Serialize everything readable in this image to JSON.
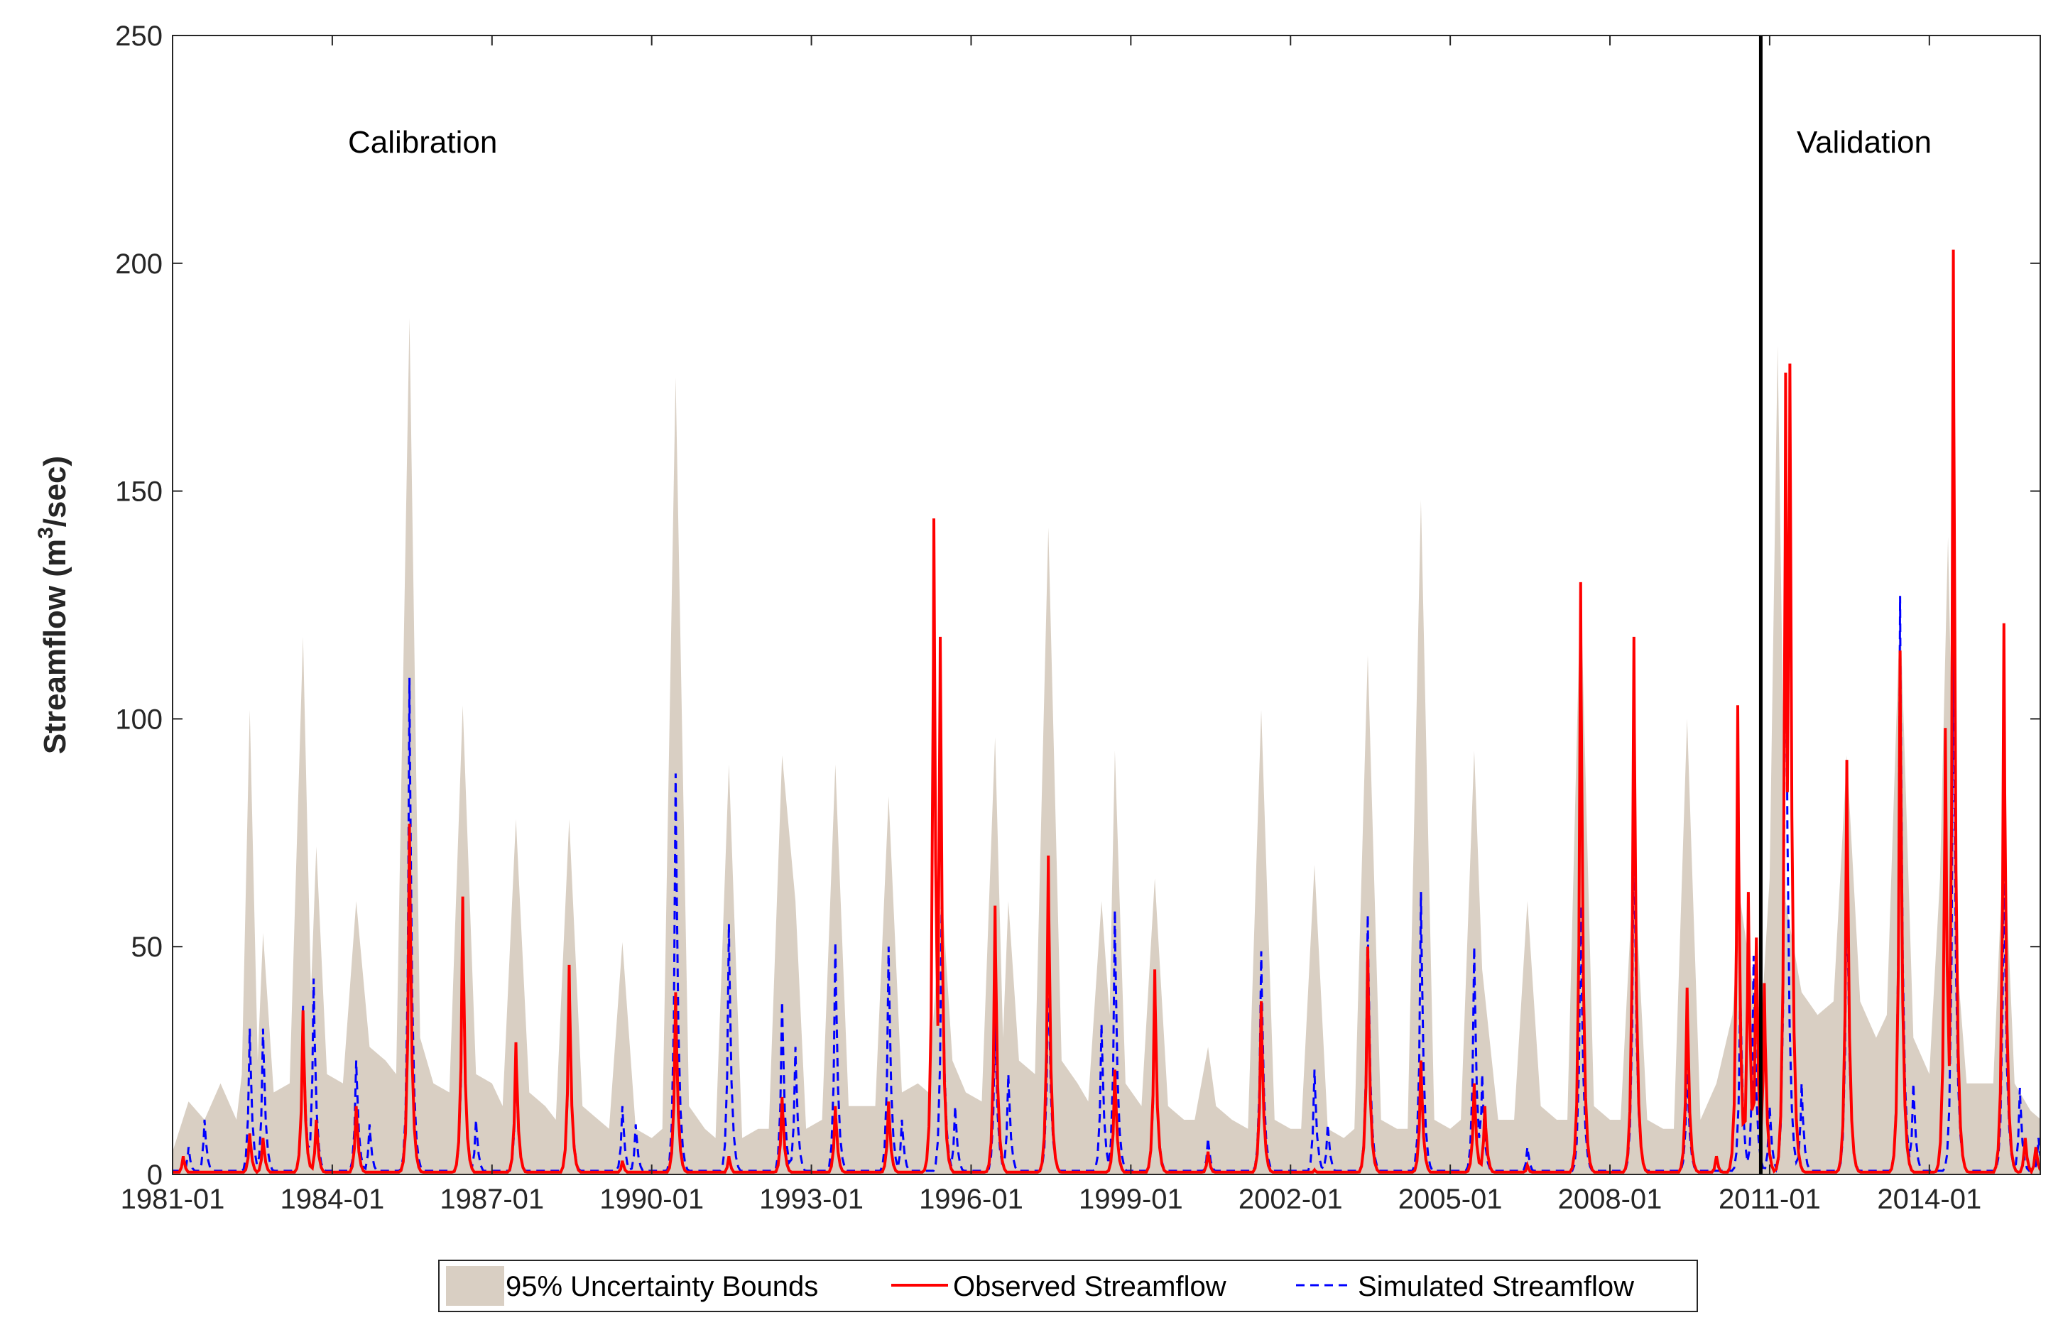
{
  "chart_data": {
    "type": "line",
    "ylabel": {
      "prefix": "Streamflow (m",
      "sup": "3",
      "suffix": "/sec)"
    },
    "ylim": [
      0,
      250
    ],
    "yticks": [
      0,
      50,
      100,
      150,
      200,
      250
    ],
    "xlim": [
      "1981-01",
      "2016-02"
    ],
    "xticks": [
      "1981-01",
      "1984-01",
      "1987-01",
      "1990-01",
      "1993-01",
      "1996-01",
      "1999-01",
      "2002-01",
      "2005-01",
      "2008-01",
      "2011-01",
      "2014-01"
    ],
    "grid": false,
    "legend_position": "bottom-center, outside",
    "annotations": [
      {
        "text": "Calibration",
        "x": "1981-01"
      },
      {
        "text": "Validation",
        "x": "2011-01"
      }
    ],
    "divider_x": "2010-11",
    "colors": {
      "band": "#d9cfc3",
      "observed": "#ff0000",
      "simulated": "#0000ff",
      "divider": "#000000"
    },
    "series": [
      {
        "name": "95% Uncertainty Bounds",
        "kind": "band",
        "note": "Upper values per year: x in fractional years, y in m3/sec",
        "upper": [
          [
            1981.0,
            5
          ],
          [
            1981.3,
            16
          ],
          [
            1981.6,
            12
          ],
          [
            1981.9,
            20
          ],
          [
            1982.2,
            12
          ],
          [
            1982.3,
            22
          ],
          [
            1982.45,
            102
          ],
          [
            1982.6,
            25
          ],
          [
            1982.7,
            53
          ],
          [
            1982.9,
            18
          ],
          [
            1983.2,
            20
          ],
          [
            1983.45,
            118
          ],
          [
            1983.6,
            40
          ],
          [
            1983.7,
            72
          ],
          [
            1983.9,
            22
          ],
          [
            1984.2,
            20
          ],
          [
            1984.45,
            60
          ],
          [
            1984.7,
            28
          ],
          [
            1985.0,
            25
          ],
          [
            1985.2,
            22
          ],
          [
            1985.45,
            188
          ],
          [
            1985.65,
            30
          ],
          [
            1985.9,
            20
          ],
          [
            1986.2,
            18
          ],
          [
            1986.45,
            103
          ],
          [
            1986.7,
            22
          ],
          [
            1987.0,
            20
          ],
          [
            1987.2,
            15
          ],
          [
            1987.45,
            78
          ],
          [
            1987.7,
            18
          ],
          [
            1988.0,
            15
          ],
          [
            1988.2,
            12
          ],
          [
            1988.45,
            78
          ],
          [
            1988.7,
            15
          ],
          [
            1989.0,
            12
          ],
          [
            1989.2,
            10
          ],
          [
            1989.45,
            51
          ],
          [
            1989.7,
            10
          ],
          [
            1990.0,
            8
          ],
          [
            1990.2,
            10
          ],
          [
            1990.45,
            175
          ],
          [
            1990.7,
            15
          ],
          [
            1991.0,
            10
          ],
          [
            1991.2,
            8
          ],
          [
            1991.45,
            90
          ],
          [
            1991.7,
            8
          ],
          [
            1992.0,
            10
          ],
          [
            1992.2,
            10
          ],
          [
            1992.45,
            92
          ],
          [
            1992.7,
            60
          ],
          [
            1992.9,
            10
          ],
          [
            1993.2,
            12
          ],
          [
            1993.45,
            90
          ],
          [
            1993.7,
            15
          ],
          [
            1994.0,
            15
          ],
          [
            1994.2,
            15
          ],
          [
            1994.45,
            83
          ],
          [
            1994.7,
            18
          ],
          [
            1995.0,
            20
          ],
          [
            1995.2,
            18
          ],
          [
            1995.45,
            62
          ],
          [
            1995.65,
            25
          ],
          [
            1995.9,
            18
          ],
          [
            1996.2,
            16
          ],
          [
            1996.45,
            96
          ],
          [
            1996.6,
            30
          ],
          [
            1996.7,
            60
          ],
          [
            1996.9,
            25
          ],
          [
            1997.2,
            22
          ],
          [
            1997.45,
            142
          ],
          [
            1997.7,
            25
          ],
          [
            1998.0,
            20
          ],
          [
            1998.2,
            16
          ],
          [
            1998.45,
            60
          ],
          [
            1998.6,
            35
          ],
          [
            1998.7,
            93
          ],
          [
            1998.9,
            20
          ],
          [
            1999.2,
            15
          ],
          [
            1999.45,
            65
          ],
          [
            1999.7,
            15
          ],
          [
            2000.0,
            12
          ],
          [
            2000.2,
            12
          ],
          [
            2000.45,
            28
          ],
          [
            2000.6,
            15
          ],
          [
            2000.9,
            12
          ],
          [
            2001.2,
            10
          ],
          [
            2001.45,
            102
          ],
          [
            2001.7,
            12
          ],
          [
            2002.0,
            10
          ],
          [
            2002.2,
            10
          ],
          [
            2002.45,
            68
          ],
          [
            2002.7,
            10
          ],
          [
            2003.0,
            8
          ],
          [
            2003.2,
            10
          ],
          [
            2003.45,
            114
          ],
          [
            2003.7,
            12
          ],
          [
            2004.0,
            10
          ],
          [
            2004.2,
            10
          ],
          [
            2004.45,
            148
          ],
          [
            2004.7,
            12
          ],
          [
            2005.0,
            10
          ],
          [
            2005.2,
            12
          ],
          [
            2005.45,
            93
          ],
          [
            2005.6,
            45
          ],
          [
            2005.9,
            12
          ],
          [
            2006.2,
            12
          ],
          [
            2006.45,
            60
          ],
          [
            2006.7,
            15
          ],
          [
            2007.0,
            12
          ],
          [
            2007.2,
            12
          ],
          [
            2007.45,
            130
          ],
          [
            2007.7,
            15
          ],
          [
            2008.0,
            12
          ],
          [
            2008.2,
            12
          ],
          [
            2008.45,
            69
          ],
          [
            2008.7,
            12
          ],
          [
            2009.0,
            10
          ],
          [
            2009.2,
            10
          ],
          [
            2009.45,
            100
          ],
          [
            2009.7,
            12
          ],
          [
            2010.0,
            20
          ],
          [
            2010.3,
            35
          ],
          [
            2010.45,
            60
          ],
          [
            2010.7,
            40
          ],
          [
            2010.85,
            35
          ],
          [
            2011.0,
            65
          ],
          [
            2011.15,
            182
          ],
          [
            2011.3,
            60
          ],
          [
            2011.6,
            40
          ],
          [
            2011.9,
            35
          ],
          [
            2012.2,
            38
          ],
          [
            2012.45,
            92
          ],
          [
            2012.7,
            38
          ],
          [
            2013.0,
            30
          ],
          [
            2013.2,
            35
          ],
          [
            2013.45,
            125
          ],
          [
            2013.7,
            30
          ],
          [
            2014.0,
            22
          ],
          [
            2014.2,
            65
          ],
          [
            2014.35,
            140
          ],
          [
            2014.5,
            50
          ],
          [
            2014.7,
            20
          ],
          [
            2015.0,
            20
          ],
          [
            2015.2,
            20
          ],
          [
            2015.4,
            75
          ],
          [
            2015.6,
            20
          ],
          [
            2015.9,
            14
          ],
          [
            2016.1,
            12
          ]
        ],
        "lower": [
          [
            1981.0,
            0
          ],
          [
            2016.1,
            0
          ]
        ]
      },
      {
        "name": "Observed Streamflow",
        "kind": "line",
        "peaks": [
          [
            1981.2,
            4
          ],
          [
            1982.45,
            9
          ],
          [
            1982.7,
            8
          ],
          [
            1983.45,
            36
          ],
          [
            1983.7,
            12
          ],
          [
            1984.45,
            15
          ],
          [
            1985.45,
            77
          ],
          [
            1986.45,
            61
          ],
          [
            1987.45,
            29
          ],
          [
            1988.45,
            46
          ],
          [
            1989.45,
            3
          ],
          [
            1990.45,
            40
          ],
          [
            1991.45,
            4
          ],
          [
            1992.45,
            17
          ],
          [
            1993.45,
            15
          ],
          [
            1994.45,
            16
          ],
          [
            1995.3,
            144
          ],
          [
            1995.42,
            118
          ],
          [
            1996.45,
            59
          ],
          [
            1997.45,
            70
          ],
          [
            1998.7,
            23
          ],
          [
            1999.45,
            45
          ],
          [
            2000.45,
            5
          ],
          [
            2001.45,
            38
          ],
          [
            2002.45,
            1
          ],
          [
            2003.45,
            50
          ],
          [
            2004.45,
            25
          ],
          [
            2005.45,
            20
          ],
          [
            2005.65,
            15
          ],
          [
            2006.45,
            2
          ],
          [
            2007.45,
            130
          ],
          [
            2008.45,
            118
          ],
          [
            2009.45,
            41
          ],
          [
            2010.0,
            4
          ],
          [
            2010.4,
            103
          ],
          [
            2010.6,
            62
          ],
          [
            2010.75,
            52
          ],
          [
            2010.9,
            42
          ],
          [
            2011.3,
            176
          ],
          [
            2011.38,
            178
          ],
          [
            2012.45,
            91
          ],
          [
            2013.45,
            115
          ],
          [
            2014.3,
            98
          ],
          [
            2014.45,
            203
          ],
          [
            2015.4,
            121
          ],
          [
            2015.8,
            8
          ],
          [
            2016.0,
            6
          ]
        ]
      },
      {
        "name": "Simulated Streamflow",
        "kind": "dashed-line",
        "peaks": [
          [
            1981.3,
            6
          ],
          [
            1981.6,
            12
          ],
          [
            1982.45,
            32
          ],
          [
            1982.7,
            32
          ],
          [
            1983.45,
            37
          ],
          [
            1983.65,
            43
          ],
          [
            1984.45,
            25
          ],
          [
            1984.7,
            11
          ],
          [
            1985.45,
            109
          ],
          [
            1986.45,
            53
          ],
          [
            1986.7,
            12
          ],
          [
            1987.45,
            24
          ],
          [
            1988.45,
            42
          ],
          [
            1989.45,
            15
          ],
          [
            1989.7,
            11
          ],
          [
            1990.45,
            88
          ],
          [
            1991.45,
            55
          ],
          [
            1992.45,
            38
          ],
          [
            1992.7,
            28
          ],
          [
            1993.45,
            51
          ],
          [
            1994.45,
            50
          ],
          [
            1994.7,
            12
          ],
          [
            1995.45,
            62
          ],
          [
            1995.7,
            15
          ],
          [
            1996.45,
            35
          ],
          [
            1996.7,
            22
          ],
          [
            1997.45,
            47
          ],
          [
            1998.45,
            33
          ],
          [
            1998.7,
            58
          ],
          [
            1999.45,
            40
          ],
          [
            2000.45,
            8
          ],
          [
            2001.45,
            49
          ],
          [
            2002.45,
            23
          ],
          [
            2002.7,
            11
          ],
          [
            2003.45,
            57
          ],
          [
            2004.45,
            62
          ],
          [
            2005.45,
            50
          ],
          [
            2005.6,
            22
          ],
          [
            2006.45,
            6
          ],
          [
            2007.45,
            59
          ],
          [
            2008.45,
            84
          ],
          [
            2009.45,
            24
          ],
          [
            2010.45,
            40
          ],
          [
            2010.7,
            48
          ],
          [
            2011.0,
            15
          ],
          [
            2011.3,
            148
          ],
          [
            2011.6,
            20
          ],
          [
            2012.45,
            70
          ],
          [
            2013.45,
            127
          ],
          [
            2013.7,
            20
          ],
          [
            2014.45,
            124
          ],
          [
            2015.4,
            75
          ],
          [
            2015.7,
            19
          ],
          [
            2016.05,
            8
          ]
        ]
      }
    ]
  }
}
